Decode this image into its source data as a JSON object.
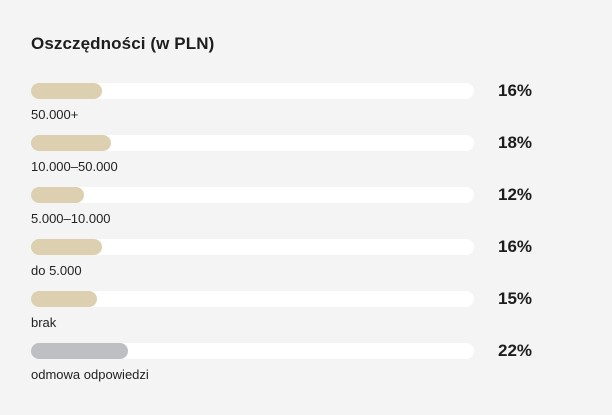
{
  "chart_data": {
    "type": "bar",
    "orientation": "horizontal",
    "title": "Oszczędności (w PLN)",
    "categories": [
      "50.000+",
      "10.000–50.000",
      "5.000–10.000",
      "do 5.000",
      "brak",
      "odmowa odpowiedzi"
    ],
    "values": [
      16,
      18,
      12,
      16,
      15,
      22
    ],
    "value_labels": [
      "16%",
      "18%",
      "12%",
      "16%",
      "15%",
      "22%"
    ],
    "unit": "%",
    "xlim": [
      0,
      100
    ],
    "grid": false,
    "legend": "none",
    "colors": [
      "#ddd0b0",
      "#ddd0b0",
      "#ddd0b0",
      "#ddd0b0",
      "#ddd0b0",
      "#bdbfc2"
    ]
  }
}
